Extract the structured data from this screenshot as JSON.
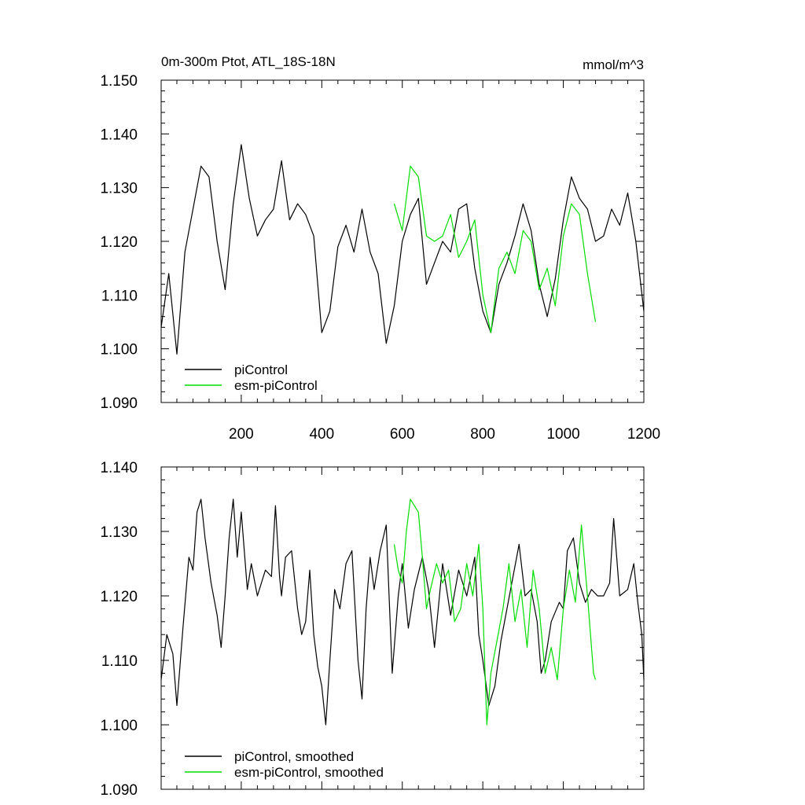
{
  "chart_data": [
    {
      "type": "line",
      "title": "0m-300m Ptot, ATL_18S-18N",
      "units": "mmol/m^3",
      "xlabel": "",
      "ylabel": "",
      "xlim": [
        1,
        1200
      ],
      "ylim": [
        1.09,
        1.15
      ],
      "x_tick_values": [
        200,
        400,
        600,
        800,
        1000,
        1200
      ],
      "x_tick_labels": [
        "200",
        "400",
        "600",
        "800",
        "1000",
        "1200"
      ],
      "y_tick_values": [
        1.09,
        1.1,
        1.11,
        1.12,
        1.13,
        1.14,
        1.15
      ],
      "y_tick_labels": [
        "1.090",
        "1.100",
        "1.110",
        "1.120",
        "1.130",
        "1.140",
        "1.150"
      ],
      "legend_position": "bottom-left",
      "series": [
        {
          "name": "piControl",
          "color": "#000000",
          "x": [
            1,
            20,
            40,
            60,
            80,
            100,
            120,
            140,
            160,
            180,
            200,
            220,
            240,
            260,
            280,
            300,
            320,
            340,
            360,
            380,
            400,
            420,
            440,
            460,
            480,
            500,
            520,
            540,
            560,
            580,
            600,
            620,
            640,
            660,
            680,
            700,
            720,
            740,
            760,
            780,
            800,
            820,
            840,
            860,
            880,
            900,
            920,
            940,
            960,
            980,
            1000,
            1020,
            1040,
            1060,
            1080,
            1100,
            1120,
            1140,
            1160,
            1180,
            1200
          ],
          "values": [
            1.104,
            1.114,
            1.099,
            1.118,
            1.126,
            1.134,
            1.132,
            1.12,
            1.111,
            1.127,
            1.138,
            1.128,
            1.121,
            1.124,
            1.126,
            1.135,
            1.124,
            1.127,
            1.125,
            1.121,
            1.103,
            1.107,
            1.119,
            1.123,
            1.118,
            1.126,
            1.118,
            1.114,
            1.101,
            1.108,
            1.12,
            1.125,
            1.128,
            1.112,
            1.116,
            1.12,
            1.118,
            1.126,
            1.127,
            1.115,
            1.107,
            1.103,
            1.112,
            1.116,
            1.121,
            1.127,
            1.122,
            1.112,
            1.106,
            1.113,
            1.124,
            1.132,
            1.128,
            1.126,
            1.12,
            1.121,
            1.126,
            1.123,
            1.129,
            1.12,
            1.107
          ]
        },
        {
          "name": "esm-piControl",
          "color": "#00dd00",
          "x": [
            580,
            600,
            620,
            640,
            660,
            680,
            700,
            720,
            740,
            760,
            780,
            800,
            820,
            840,
            860,
            880,
            900,
            920,
            940,
            960,
            980,
            1000,
            1020,
            1040,
            1060,
            1080
          ],
          "values": [
            1.127,
            1.122,
            1.134,
            1.132,
            1.121,
            1.12,
            1.121,
            1.125,
            1.117,
            1.12,
            1.124,
            1.11,
            1.103,
            1.115,
            1.118,
            1.114,
            1.122,
            1.12,
            1.111,
            1.115,
            1.108,
            1.121,
            1.127,
            1.125,
            1.114,
            1.105
          ]
        }
      ]
    },
    {
      "type": "line",
      "title": "",
      "xlabel": "",
      "ylabel": "",
      "xlim": [
        1,
        1200
      ],
      "ylim": [
        1.09,
        1.14
      ],
      "x_tick_values": [
        200,
        400,
        600,
        800,
        1000,
        1200
      ],
      "x_tick_labels": [
        "",
        "",
        "",
        "",
        "",
        ""
      ],
      "y_tick_values": [
        1.09,
        1.1,
        1.11,
        1.12,
        1.13,
        1.14
      ],
      "y_tick_labels": [
        "1.090",
        "1.100",
        "1.110",
        "1.120",
        "1.130",
        "1.140"
      ],
      "legend_position": "bottom-left",
      "series": [
        {
          "name": "piControl, smoothed",
          "color": "#000000",
          "x": [
            1,
            15,
            30,
            40,
            55,
            70,
            80,
            90,
            100,
            110,
            125,
            140,
            150,
            160,
            170,
            180,
            190,
            200,
            215,
            225,
            240,
            260,
            275,
            285,
            295,
            300,
            310,
            325,
            340,
            350,
            360,
            370,
            380,
            390,
            400,
            410,
            420,
            432,
            445,
            460,
            475,
            490,
            500,
            510,
            520,
            530,
            545,
            560,
            575,
            590,
            600,
            615,
            630,
            650,
            665,
            680,
            700,
            720,
            740,
            760,
            780,
            790,
            800,
            815,
            830,
            845,
            860,
            875,
            890,
            905,
            920,
            935,
            945,
            955,
            970,
            990,
            1000,
            1010,
            1025,
            1040,
            1055,
            1070,
            1085,
            1100,
            1115,
            1125,
            1140,
            1160,
            1175,
            1185,
            1195,
            1200
          ],
          "values": [
            1.107,
            1.114,
            1.111,
            1.103,
            1.115,
            1.126,
            1.124,
            1.133,
            1.135,
            1.129,
            1.122,
            1.117,
            1.112,
            1.12,
            1.129,
            1.135,
            1.126,
            1.133,
            1.121,
            1.125,
            1.12,
            1.124,
            1.123,
            1.134,
            1.123,
            1.12,
            1.126,
            1.127,
            1.118,
            1.114,
            1.116,
            1.124,
            1.114,
            1.109,
            1.106,
            1.1,
            1.11,
            1.121,
            1.118,
            1.125,
            1.127,
            1.11,
            1.104,
            1.118,
            1.126,
            1.121,
            1.127,
            1.131,
            1.108,
            1.12,
            1.125,
            1.115,
            1.121,
            1.126,
            1.121,
            1.112,
            1.125,
            1.117,
            1.124,
            1.12,
            1.126,
            1.114,
            1.11,
            1.103,
            1.106,
            1.113,
            1.118,
            1.123,
            1.128,
            1.12,
            1.121,
            1.116,
            1.108,
            1.11,
            1.116,
            1.119,
            1.118,
            1.127,
            1.129,
            1.122,
            1.119,
            1.121,
            1.12,
            1.12,
            1.122,
            1.132,
            1.12,
            1.121,
            1.125,
            1.119,
            1.114,
            1.107
          ]
        },
        {
          "name": "esm-piControl, smoothed",
          "color": "#00dd00",
          "x": [
            580,
            590,
            600,
            610,
            620,
            630,
            640,
            650,
            660,
            670,
            685,
            700,
            715,
            730,
            745,
            760,
            775,
            790,
            800,
            810,
            820,
            835,
            850,
            865,
            880,
            895,
            910,
            925,
            940,
            955,
            970,
            985,
            1000,
            1015,
            1030,
            1045,
            1060,
            1075,
            1080
          ],
          "values": [
            1.128,
            1.124,
            1.122,
            1.13,
            1.135,
            1.134,
            1.133,
            1.126,
            1.118,
            1.121,
            1.125,
            1.122,
            1.124,
            1.116,
            1.118,
            1.125,
            1.12,
            1.128,
            1.118,
            1.1,
            1.108,
            1.113,
            1.118,
            1.125,
            1.116,
            1.121,
            1.112,
            1.124,
            1.118,
            1.108,
            1.112,
            1.107,
            1.118,
            1.124,
            1.119,
            1.131,
            1.12,
            1.108,
            1.107
          ]
        }
      ]
    }
  ]
}
